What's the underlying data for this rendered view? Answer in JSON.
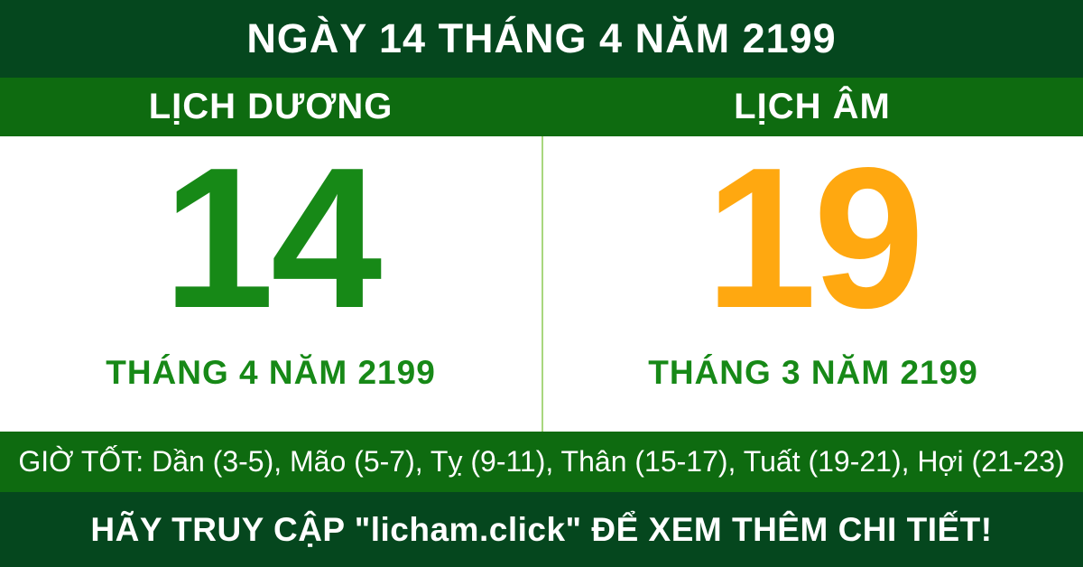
{
  "header": {
    "title": "NGÀY 14 THÁNG 4 NĂM 2199"
  },
  "tabs": {
    "solar_label": "LỊCH DƯƠNG",
    "lunar_label": "LỊCH ÂM"
  },
  "solar": {
    "day": "14",
    "month_year": "THÁNG 4 NĂM 2199"
  },
  "lunar": {
    "day": "19",
    "month_year": "THÁNG 3 NĂM 2199"
  },
  "good_hours": {
    "text": "GIỜ TỐT: Dần (3-5), Mão (5-7), Tỵ (9-11), Thân (15-17), Tuất (19-21), Hợi (21-23)"
  },
  "footer": {
    "text": "HÃY TRUY CẬP \"licham.click\" ĐỂ XEM THÊM CHI TIẾT!"
  },
  "colors": {
    "dark_green": "#05471E",
    "green": "#0E6B10",
    "solar_day": "#178917",
    "lunar_day": "#FFA810",
    "month_text": "#178917",
    "divider": "#A9D77E",
    "text_white": "#FFFFFF"
  }
}
